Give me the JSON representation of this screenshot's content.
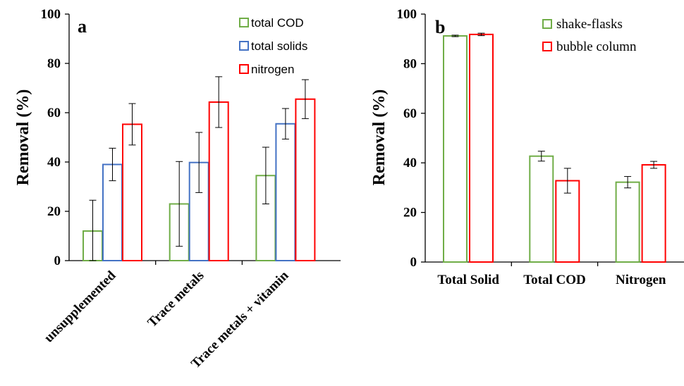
{
  "chart_data": [
    {
      "type": "bar",
      "panel_label": "a",
      "ylabel": "Removal (%)",
      "ylim": [
        0,
        100
      ],
      "yticks": [
        0,
        20,
        40,
        60,
        80,
        100
      ],
      "legend_position": "top-right",
      "categories": [
        "unsupplemented",
        "Trace metals",
        "Trace metals + vitamin"
      ],
      "series": [
        {
          "name": "total COD",
          "color": "#70ad47",
          "values": [
            12,
            23,
            34.5
          ],
          "errors": [
            12.5,
            17.2,
            11.5
          ]
        },
        {
          "name": "total solids",
          "color": "#4472c4",
          "values": [
            39,
            39.8,
            55.5
          ],
          "errors": [
            6.6,
            12.2,
            6.2
          ]
        },
        {
          "name": "nitrogen",
          "color": "#ff0000",
          "values": [
            55.3,
            64.3,
            65.5
          ],
          "errors": [
            8.4,
            10.3,
            7.9
          ]
        }
      ]
    },
    {
      "type": "bar",
      "panel_label": "b",
      "ylabel": "Removal (%)",
      "ylim": [
        0,
        100
      ],
      "yticks": [
        0,
        20,
        40,
        60,
        80,
        100
      ],
      "legend_position": "top-right",
      "categories": [
        "Total Solid",
        "Total COD",
        "Nitrogen"
      ],
      "series": [
        {
          "name": "shake-flasks",
          "color": "#70ad47",
          "values": [
            91.2,
            42.7,
            32.2
          ],
          "errors": [
            0.3,
            2.0,
            2.3
          ]
        },
        {
          "name": "bubble column",
          "color": "#ff0000",
          "values": [
            91.8,
            32.8,
            39.2
          ],
          "errors": [
            0.5,
            5.0,
            1.4
          ]
        }
      ]
    }
  ]
}
